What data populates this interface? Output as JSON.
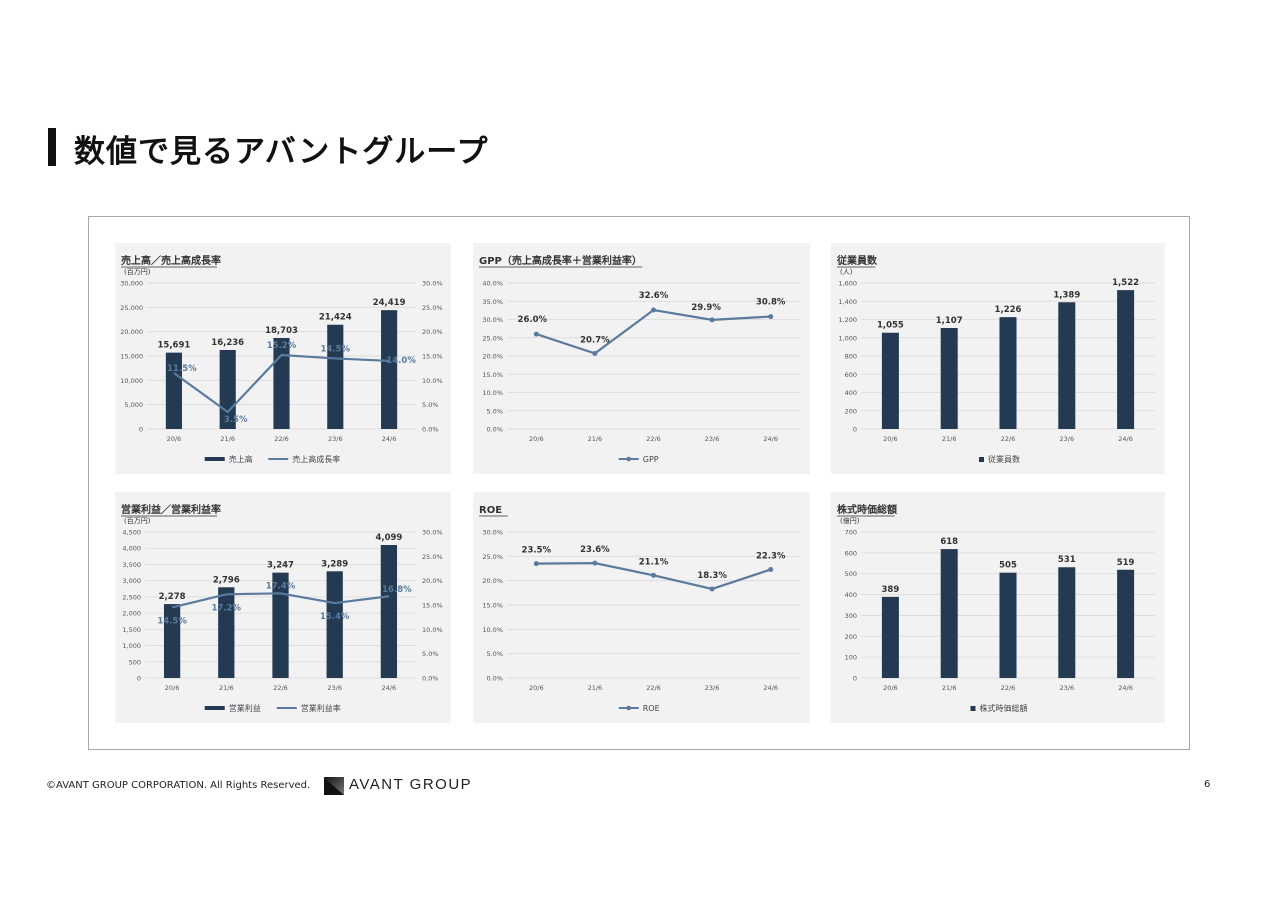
{
  "page": {
    "title": "数値で見るアバントグループ",
    "footer_copyright": "©AVANT GROUP CORPORATION. All Rights Reserved.",
    "logo_text": "AVANT GROUP",
    "page_number": "6"
  },
  "colors": {
    "bar": "#243a52",
    "line": "#5a7a9e",
    "grid": "#d9d9d9",
    "panel": "#f2f2f2"
  },
  "chart_data": [
    {
      "id": "sales",
      "type": "bar+line",
      "title": "売上高／売上高成長率",
      "unit": "(百万円)",
      "categories": [
        "20/6",
        "21/6",
        "22/6",
        "23/6",
        "24/6"
      ],
      "bar_series": {
        "name": "売上高",
        "values": [
          15691,
          16236,
          18703,
          21424,
          24419
        ],
        "labels": [
          "15,691",
          "16,236",
          "18,703",
          "21,424",
          "24,419"
        ]
      },
      "line_series": {
        "name": "売上高成長率",
        "values": [
          11.5,
          3.5,
          15.2,
          14.5,
          14.0
        ],
        "labels": [
          "11.5%",
          "3.5%",
          "15.2%",
          "14.5%",
          "14.0%"
        ]
      },
      "y_left": {
        "min": 0,
        "max": 30000,
        "ticks": [
          "0",
          "5,000",
          "10,000",
          "15,000",
          "20,000",
          "25,000",
          "30,000"
        ]
      },
      "y_right": {
        "min": 0,
        "max": 30,
        "ticks": [
          "0.0%",
          "5.0%",
          "10.0%",
          "15.0%",
          "20.0%",
          "25.0%",
          "30.0%"
        ]
      },
      "legend": [
        "売上高",
        "売上高成長率"
      ]
    },
    {
      "id": "gpp",
      "type": "line",
      "title": "GPP（売上高成長率＋営業利益率）",
      "unit": "",
      "categories": [
        "20/6",
        "21/6",
        "22/6",
        "23/6",
        "24/6"
      ],
      "line_series": {
        "name": "GPP",
        "values": [
          26.0,
          20.7,
          32.6,
          29.9,
          30.8
        ],
        "labels": [
          "26.0%",
          "20.7%",
          "32.6%",
          "29.9%",
          "30.8%"
        ]
      },
      "y_left": {
        "min": 0,
        "max": 40,
        "ticks": [
          "0.0%",
          "5.0%",
          "10.0%",
          "15.0%",
          "20.0%",
          "25.0%",
          "30.0%",
          "35.0%",
          "40.0%"
        ]
      },
      "legend": [
        "GPP"
      ]
    },
    {
      "id": "employees",
      "type": "bar",
      "title": "従業員数",
      "unit": "(人)",
      "categories": [
        "20/6",
        "21/6",
        "22/6",
        "23/6",
        "24/6"
      ],
      "bar_series": {
        "name": "従業員数",
        "values": [
          1055,
          1107,
          1226,
          1389,
          1522
        ],
        "labels": [
          "1,055",
          "1,107",
          "1,226",
          "1,389",
          "1,522"
        ]
      },
      "y_left": {
        "min": 0,
        "max": 1600,
        "ticks": [
          "0",
          "200",
          "400",
          "600",
          "800",
          "1,000",
          "1,200",
          "1,400",
          "1,600"
        ]
      },
      "legend": [
        "従業員数"
      ]
    },
    {
      "id": "op",
      "type": "bar+line",
      "title": "営業利益／営業利益率",
      "unit": "(百万円)",
      "categories": [
        "20/6",
        "21/6",
        "22/6",
        "23/6",
        "24/6"
      ],
      "bar_series": {
        "name": "営業利益",
        "values": [
          2278,
          2796,
          3247,
          3289,
          4099
        ],
        "labels": [
          "2,278",
          "2,796",
          "3,247",
          "3,289",
          "4,099"
        ]
      },
      "line_series": {
        "name": "営業利益率",
        "values": [
          14.5,
          17.2,
          17.4,
          15.4,
          16.8
        ],
        "labels": [
          "14.5%",
          "17.2%",
          "17.4%",
          "15.4%",
          "16.8%"
        ]
      },
      "y_left": {
        "min": 0,
        "max": 4500,
        "ticks": [
          "0",
          "500",
          "1,000",
          "1,500",
          "2,000",
          "2,500",
          "3,000",
          "3,500",
          "4,000",
          "4,500"
        ]
      },
      "y_right": {
        "min": 0,
        "max": 30,
        "ticks": [
          "0.0%",
          "5.0%",
          "10.0%",
          "15.0%",
          "20.0%",
          "25.0%",
          "30.0%"
        ]
      },
      "legend": [
        "営業利益",
        "営業利益率"
      ]
    },
    {
      "id": "roe",
      "type": "line",
      "title": "ROE",
      "unit": "",
      "categories": [
        "20/6",
        "21/6",
        "22/6",
        "23/6",
        "24/6"
      ],
      "line_series": {
        "name": "ROE",
        "values": [
          23.5,
          23.6,
          21.1,
          18.3,
          22.3
        ],
        "labels": [
          "23.5%",
          "23.6%",
          "21.1%",
          "18.3%",
          "22.3%"
        ]
      },
      "y_left": {
        "min": 0,
        "max": 30,
        "ticks": [
          "0.0%",
          "5.0%",
          "10.0%",
          "15.0%",
          "20.0%",
          "25.0%",
          "30.0%"
        ]
      },
      "legend": [
        "ROE"
      ]
    },
    {
      "id": "mcap",
      "type": "bar",
      "title": "株式時価総額",
      "unit": "(億円)",
      "categories": [
        "20/6",
        "21/6",
        "22/6",
        "23/6",
        "24/6"
      ],
      "bar_series": {
        "name": "株式時価総額",
        "values": [
          389,
          618,
          505,
          531,
          519
        ],
        "labels": [
          "389",
          "618",
          "505",
          "531",
          "519"
        ]
      },
      "y_left": {
        "min": 0,
        "max": 700,
        "ticks": [
          "0",
          "100",
          "200",
          "300",
          "400",
          "500",
          "600",
          "700"
        ]
      },
      "legend": [
        "株式時価総額"
      ]
    }
  ]
}
